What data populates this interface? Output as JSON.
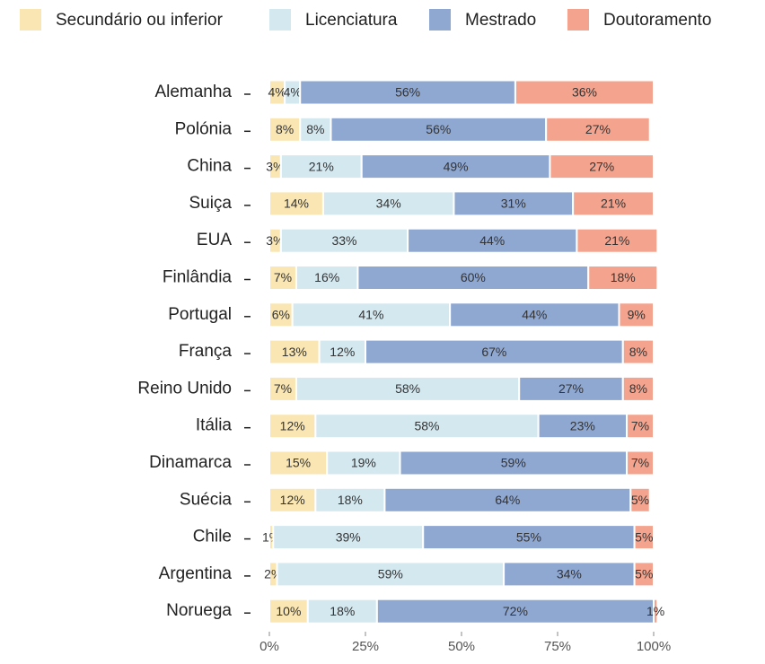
{
  "chart_data": {
    "type": "bar",
    "orientation": "horizontal",
    "stacked": true,
    "categories": [
      "Alemanha",
      "Polónia",
      "China",
      "Suiça",
      "EUA",
      "Finlândia",
      "Portugal",
      "França",
      "Reino Unido",
      "Itália",
      "Dinamarca",
      "Suécia",
      "Chile",
      "Argentina",
      "Noruega"
    ],
    "series": [
      {
        "name": "Secundário ou inferior",
        "color": "#f9e6b3",
        "values": [
          4,
          8,
          3,
          14,
          3,
          7,
          6,
          13,
          7,
          12,
          15,
          12,
          1,
          2,
          10
        ],
        "value_labels": [
          "4%",
          "8%",
          "3%",
          "14%",
          "3%",
          "7%",
          "6%",
          "13%",
          "7%",
          "12%",
          "15%",
          "12%",
          "1%",
          "2%",
          "10%"
        ]
      },
      {
        "name": "Licenciatura",
        "color": "#d4e8f0",
        "values": [
          4,
          8,
          21,
          34,
          33,
          16,
          41,
          12,
          58,
          58,
          19,
          18,
          39,
          59,
          18
        ],
        "value_labels": [
          "4%",
          "8%",
          "21%",
          "34%",
          "33%",
          "16%",
          "41%",
          "12%",
          "58%",
          "58%",
          "19%",
          "18%",
          "39%",
          "59%",
          "18%"
        ]
      },
      {
        "name": "Mestrado",
        "color": "#8fa8d2",
        "values": [
          56,
          56,
          49,
          31,
          44,
          60,
          44,
          67,
          27,
          23,
          59,
          64,
          55,
          34,
          72
        ],
        "value_labels": [
          "56%",
          "56%",
          "49%",
          "31%",
          "44%",
          "60%",
          "44%",
          "67%",
          "27%",
          "23%",
          "59%",
          "64%",
          "55%",
          "34%",
          "72%"
        ]
      },
      {
        "name": "Doutoramento",
        "color": "#f4a48e",
        "values": [
          36,
          27,
          27,
          21,
          21,
          18,
          9,
          8,
          8,
          7,
          7,
          5,
          5,
          5,
          1
        ],
        "value_labels": [
          "36%",
          "27%",
          "27%",
          "21%",
          "21%",
          "18%",
          "9%",
          "8%",
          "8%",
          "7%",
          "7%",
          "5%",
          "5%",
          "5%",
          "1%"
        ]
      }
    ],
    "xlim": [
      0,
      100
    ],
    "xticks": [
      {
        "value": 0,
        "label": "0%"
      },
      {
        "value": 25,
        "label": "25%"
      },
      {
        "value": 50,
        "label": "50%"
      },
      {
        "value": 75,
        "label": "75%"
      },
      {
        "value": 100,
        "label": "100%"
      }
    ]
  }
}
